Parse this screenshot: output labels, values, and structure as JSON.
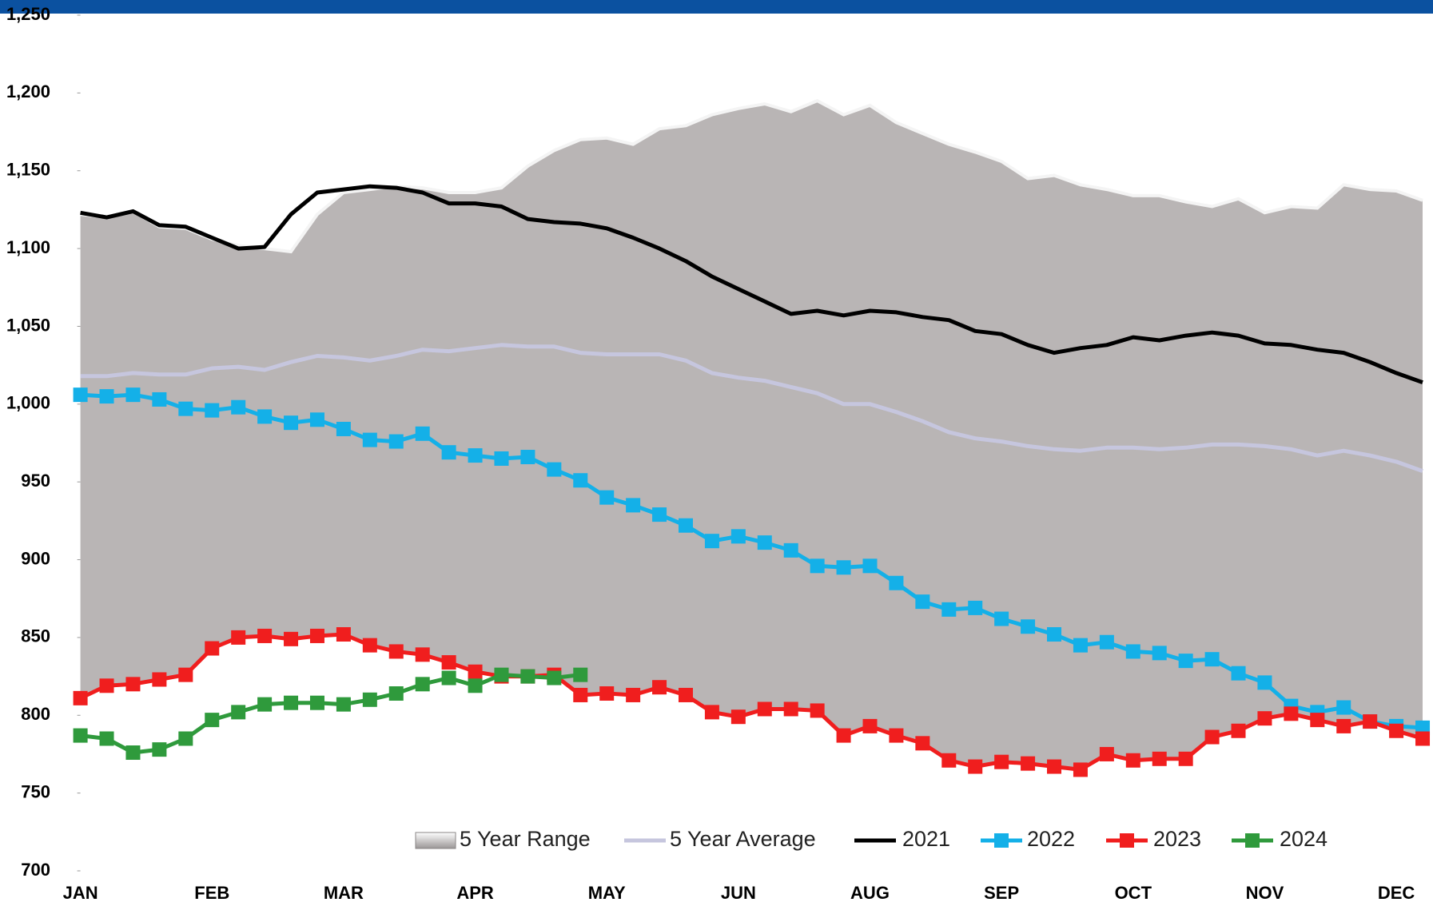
{
  "chart_data": {
    "type": "line",
    "categories": [
      "JAN",
      null,
      null,
      null,
      null,
      "FEB",
      null,
      null,
      null,
      null,
      "MAR",
      null,
      null,
      null,
      null,
      "APR",
      null,
      null,
      null,
      null,
      "MAY",
      null,
      null,
      null,
      null,
      "JUN",
      null,
      null,
      null,
      null,
      "AUG",
      null,
      null,
      null,
      null,
      "SEP",
      null,
      null,
      null,
      null,
      "OCT",
      null,
      null,
      null,
      null,
      "NOV",
      null,
      null,
      null,
      null,
      "DEC",
      null
    ],
    "ylim": [
      700,
      1250
    ],
    "yticks": [
      700,
      750,
      800,
      850,
      900,
      950,
      {
        "value": 1000,
        "label": "1,000"
      },
      {
        "value": 1050,
        "label": "1,050"
      },
      {
        "value": 1100,
        "label": "1,100"
      },
      {
        "value": 1150,
        "label": "1,150"
      },
      {
        "value": 1200,
        "label": "1,200"
      },
      {
        "value": 1250,
        "label": "1,250"
      }
    ],
    "series": [
      {
        "name": "5 Year Range",
        "color": "#b9b5b5",
        "low": [
          811,
          819,
          820,
          823,
          826,
          843,
          850,
          851,
          849,
          851,
          852,
          845,
          841,
          839,
          834,
          828,
          825,
          825,
          826,
          813,
          814,
          813,
          818,
          813,
          802,
          799,
          804,
          804,
          803,
          787,
          793,
          787,
          782,
          771,
          767,
          770,
          769,
          767,
          765,
          775,
          771,
          772,
          772,
          786,
          790,
          798,
          801,
          797,
          793,
          796,
          790,
          785
        ],
        "high": [
          1122,
          1120,
          1124,
          1114,
          1113,
          1106,
          1102,
          1100,
          1098,
          1122,
          1136,
          1138,
          1140,
          1139,
          1136,
          1136,
          1139,
          1153,
          1163,
          1170,
          1171,
          1167,
          1177,
          1179,
          1186,
          1190,
          1193,
          1188,
          1195,
          1186,
          1192,
          1181,
          1174,
          1167,
          1162,
          1156,
          1145,
          1147,
          1141,
          1138,
          1134,
          1134,
          1130,
          1127,
          1132,
          1123,
          1127,
          1126,
          1141,
          1138,
          1137,
          1131
        ]
      },
      {
        "name": "5 Year Average",
        "color": "#c6c6de",
        "values": [
          1018,
          1018,
          1020,
          1019,
          1019,
          1023,
          1024,
          1022,
          1027,
          1031,
          1030,
          1028,
          1031,
          1035,
          1034,
          1036,
          1038,
          1037,
          1037,
          1033,
          1032,
          1032,
          1032,
          1028,
          1020,
          1017,
          1015,
          1011,
          1007,
          1000,
          1000,
          995,
          989,
          982,
          978,
          976,
          973,
          971,
          970,
          972,
          972,
          971,
          972,
          974,
          974,
          973,
          971,
          967,
          970,
          967,
          963,
          957
        ]
      },
      {
        "name": "2021",
        "color": "#000000",
        "values": [
          1123,
          1120,
          1124,
          1115,
          1114,
          1107,
          1100,
          1101,
          1122,
          1136,
          1138,
          1140,
          1139,
          1136,
          1129,
          1129,
          1127,
          1119,
          1117,
          1116,
          1113,
          1107,
          1100,
          1092,
          1082,
          1074,
          1066,
          1058,
          1060,
          1057,
          1060,
          1059,
          1056,
          1054,
          1047,
          1045,
          1038,
          1033,
          1036,
          1038,
          1043,
          1041,
          1044,
          1046,
          1044,
          1039,
          1038,
          1035,
          1033,
          1027,
          1020,
          1014
        ]
      },
      {
        "name": "2022",
        "color": "#14b0e8",
        "marker": "square",
        "values": [
          1006,
          1005,
          1006,
          1003,
          997,
          996,
          998,
          992,
          988,
          990,
          984,
          977,
          976,
          981,
          969,
          967,
          965,
          966,
          958,
          951,
          940,
          935,
          929,
          922,
          912,
          915,
          911,
          906,
          896,
          895,
          896,
          885,
          873,
          868,
          869,
          862,
          857,
          852,
          845,
          847,
          841,
          840,
          835,
          836,
          827,
          821,
          806,
          802,
          805,
          796,
          793,
          792
        ]
      },
      {
        "name": "2023",
        "color": "#f01e1e",
        "marker": "square",
        "values": [
          811,
          819,
          820,
          823,
          826,
          843,
          850,
          851,
          849,
          851,
          852,
          845,
          841,
          839,
          834,
          828,
          825,
          825,
          826,
          813,
          814,
          813,
          818,
          813,
          802,
          799,
          804,
          804,
          803,
          787,
          793,
          787,
          782,
          771,
          767,
          770,
          769,
          767,
          765,
          775,
          771,
          772,
          772,
          786,
          790,
          798,
          801,
          797,
          793,
          796,
          790,
          785
        ]
      },
      {
        "name": "2024",
        "color": "#2f9a3c",
        "marker": "square",
        "values": [
          787,
          785,
          776,
          778,
          785,
          797,
          802,
          807,
          808,
          808,
          807,
          810,
          814,
          820,
          824,
          819,
          826,
          825,
          824,
          826,
          null,
          null,
          null,
          null,
          null,
          null,
          null,
          null,
          null,
          null,
          null,
          null,
          null,
          null,
          null,
          null,
          null,
          null,
          null,
          null,
          null,
          null,
          null,
          null,
          null,
          null,
          null,
          null,
          null,
          null,
          null,
          null
        ]
      }
    ]
  }
}
